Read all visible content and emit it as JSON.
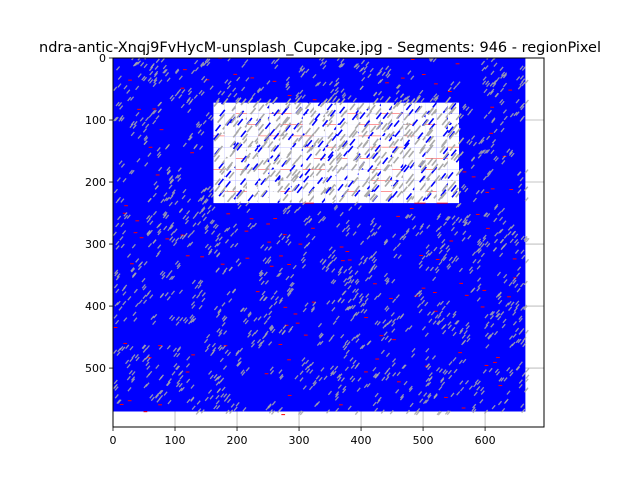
{
  "chart_data": {
    "type": "image",
    "title": "ndra-antic-Xnqj9FvHycM-unsplash_Cupcake.jpg - Segments: 946 - regionPixel",
    "xlabel": "",
    "ylabel": "",
    "xlim": [
      0,
      695
    ],
    "ylim": [
      595,
      0
    ],
    "xticks": [
      "0",
      "100",
      "200",
      "300",
      "400",
      "500",
      "600"
    ],
    "yticks": [
      "0",
      "100",
      "200",
      "300",
      "400",
      "500"
    ],
    "grid": true,
    "image_extent": {
      "width": 665,
      "height": 570
    },
    "bright_region": {
      "x": [
        145,
        545
      ],
      "y": [
        65,
        225
      ]
    },
    "colors": {
      "fill": "#0000ff",
      "boundary": "#ff0000",
      "highlight": "#ffffff",
      "gray": "#aaaaaa",
      "grid": "#b0b0b0"
    }
  }
}
